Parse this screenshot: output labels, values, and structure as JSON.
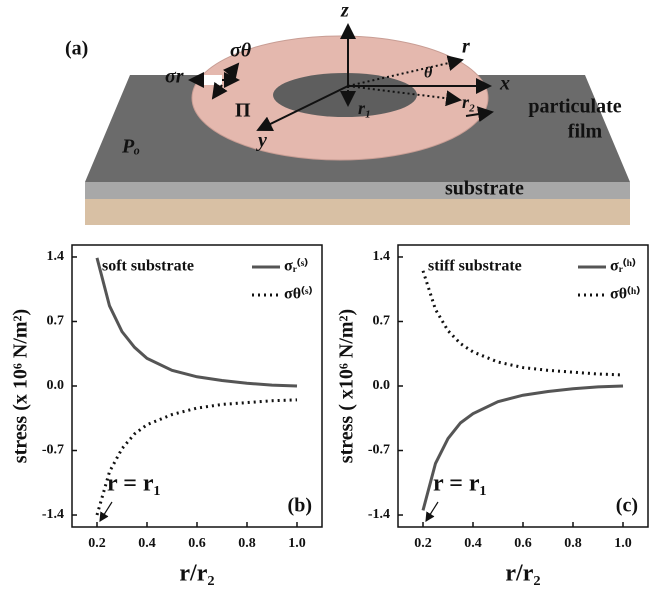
{
  "diagram": {
    "panel": "(a)",
    "z": "z",
    "sigma_theta": "σθ",
    "sigma_r": "σr",
    "r": "r",
    "theta": "θ",
    "x": "x",
    "pi": "Π",
    "r1": "r₁",
    "r2": "r₂",
    "film": [
      "particulate",
      "film"
    ],
    "y": "y",
    "p0": "Pₒ",
    "substrate": "substrate"
  },
  "chart_data": [
    {
      "type": "line",
      "panel": "(b)",
      "legend_title": "soft substrate",
      "annotation": "r = r₁",
      "x_label": "r/r₂",
      "y_label": "stress (x 10⁶ N/m²)",
      "x": [
        0.2,
        0.25,
        0.3,
        0.35,
        0.4,
        0.5,
        0.6,
        0.7,
        0.8,
        0.9,
        1.0
      ],
      "series": [
        {
          "name": "σᵣ⁽ˢ⁾",
          "color": "#555555",
          "style": "solid",
          "values": [
            1.39,
            0.87,
            0.59,
            0.42,
            0.3,
            0.17,
            0.1,
            0.06,
            0.03,
            0.01,
            0
          ]
        },
        {
          "name": "σθ⁽ˢ⁾",
          "color": "#111111",
          "style": "dotted",
          "values": [
            -1.4,
            -0.93,
            -0.68,
            -0.52,
            -0.42,
            -0.31,
            -0.24,
            -0.2,
            -0.18,
            -0.16,
            -0.15
          ]
        }
      ],
      "xlim": [
        0.1,
        1.1
      ],
      "ylim": [
        -1.53,
        1.53
      ],
      "xticks": [
        0.2,
        0.4,
        0.6,
        0.8,
        {
          "value": 1,
          "label": "1.0"
        }
      ],
      "yticks": [
        -1.4,
        -0.7,
        {
          "value": 0,
          "label": "0.0"
        },
        0.7,
        1.4
      ]
    },
    {
      "type": "line",
      "panel": "(c)",
      "legend_title": "stiff substrate",
      "annotation": "r = r₁",
      "x_label": "r/r₂",
      "y_label": "stress ( x10⁶ N/m²)",
      "x": [
        0.2,
        0.25,
        0.3,
        0.35,
        0.4,
        0.5,
        0.6,
        0.7,
        0.8,
        0.9,
        1.0
      ],
      "series": [
        {
          "name": "σᵣ⁽ʰ⁾",
          "color": "#555555",
          "style": "solid",
          "values": [
            -1.35,
            -0.84,
            -0.57,
            -0.4,
            -0.3,
            -0.17,
            -0.1,
            -0.06,
            -0.03,
            -0.01,
            0
          ]
        },
        {
          "name": "σθ⁽ʰ⁾",
          "color": "#111111",
          "style": "dotted",
          "values": [
            1.25,
            0.83,
            0.6,
            0.46,
            0.37,
            0.26,
            0.2,
            0.17,
            0.15,
            0.13,
            0.12
          ]
        }
      ],
      "xlim": [
        0.1,
        1.1
      ],
      "ylim": [
        -1.53,
        1.53
      ],
      "xticks": [
        0.2,
        0.4,
        0.6,
        0.8,
        {
          "value": 1,
          "label": "1.0"
        }
      ],
      "yticks": [
        -1.4,
        -0.7,
        {
          "value": 0,
          "label": "0.0"
        },
        0.7,
        1.4
      ]
    }
  ]
}
